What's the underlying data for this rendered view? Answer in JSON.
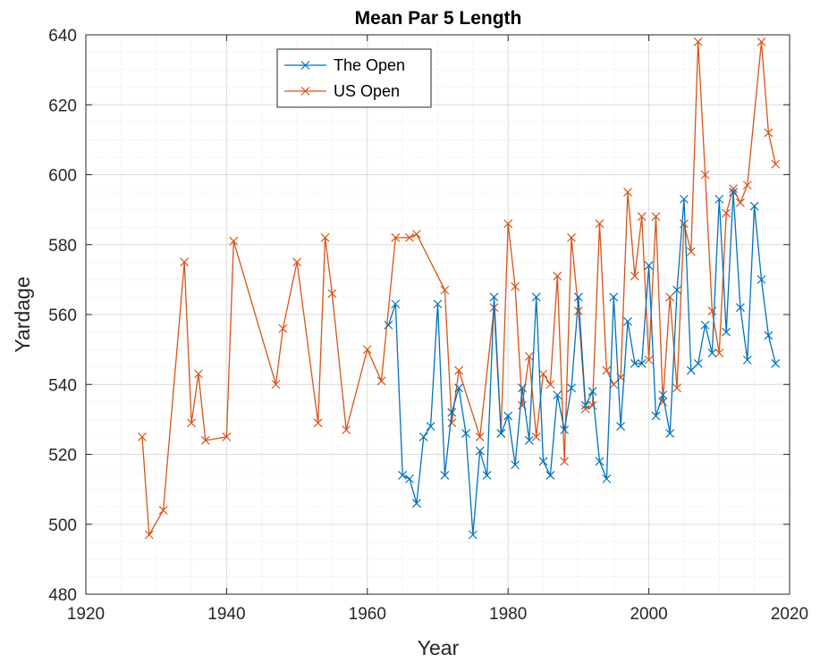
{
  "chart_data": {
    "type": "line",
    "title": "Mean Par 5 Length",
    "xlabel": "Year",
    "ylabel": "Yardage",
    "xlim": [
      1920,
      2020
    ],
    "ylim": [
      480,
      640
    ],
    "xticks": [
      1920,
      1940,
      1960,
      1980,
      2000,
      2020
    ],
    "yticks": [
      480,
      500,
      520,
      540,
      560,
      580,
      600,
      620,
      640
    ],
    "grid": true,
    "minor_grid": true,
    "legend_position": "top-left-center",
    "marker": "x",
    "series": [
      {
        "name": "The Open",
        "color": "#0072BD",
        "x": [
          1963,
          1964,
          1965,
          1966,
          1967,
          1968,
          1969,
          1970,
          1971,
          1972,
          1973,
          1974,
          1975,
          1976,
          1977,
          1978,
          1979,
          1980,
          1981,
          1982,
          1983,
          1984,
          1985,
          1986,
          1987,
          1988,
          1989,
          1990,
          1991,
          1992,
          1993,
          1994,
          1995,
          1996,
          1997,
          1998,
          1999,
          2000,
          2001,
          2002,
          2003,
          2004,
          2005,
          2006,
          2007,
          2008,
          2009,
          2010,
          2011,
          2012,
          2013,
          2014,
          2015,
          2016,
          2017,
          2018
        ],
        "y": [
          557,
          563,
          514,
          513,
          506,
          525,
          528,
          563,
          514,
          532,
          539,
          526,
          497,
          521,
          514,
          565,
          526,
          531,
          517,
          539,
          524,
          565,
          518,
          514,
          537,
          527,
          539,
          565,
          534,
          538,
          518,
          513,
          565,
          528,
          558,
          546,
          546,
          574,
          531,
          537,
          526,
          567,
          593,
          544,
          546,
          557,
          549,
          593,
          555,
          595,
          562,
          547,
          591,
          570,
          554,
          546
        ]
      },
      {
        "name": "US Open",
        "color": "#D95319",
        "x": [
          1928,
          1929,
          1931,
          1934,
          1935,
          1936,
          1937,
          1940,
          1941,
          1947,
          1948,
          1950,
          1953,
          1954,
          1955,
          1957,
          1960,
          1962,
          1964,
          1966,
          1967,
          1971,
          1972,
          1973,
          1976,
          1978,
          1979,
          1980,
          1981,
          1982,
          1983,
          1984,
          1985,
          1986,
          1987,
          1988,
          1989,
          1990,
          1991,
          1992,
          1993,
          1994,
          1995,
          1996,
          1997,
          1998,
          1999,
          2000,
          2001,
          2002,
          2003,
          2004,
          2005,
          2006,
          2007,
          2008,
          2009,
          2010,
          2011,
          2012,
          2013,
          2014,
          2016,
          2017,
          2018
        ],
        "y": [
          525,
          497,
          504,
          575,
          529,
          543,
          524,
          525,
          581,
          540,
          556,
          575,
          529,
          582,
          566,
          527,
          550,
          541,
          582,
          582,
          583,
          567,
          529,
          544,
          525,
          562,
          526,
          586,
          568,
          534,
          548,
          525,
          543,
          540,
          571,
          518,
          582,
          561,
          533,
          534,
          586,
          544,
          540,
          542,
          595,
          571,
          588,
          547,
          588,
          535,
          565,
          539,
          586,
          578,
          638,
          600,
          561,
          549,
          589,
          596,
          592,
          597,
          638,
          612,
          603
        ]
      }
    ]
  }
}
